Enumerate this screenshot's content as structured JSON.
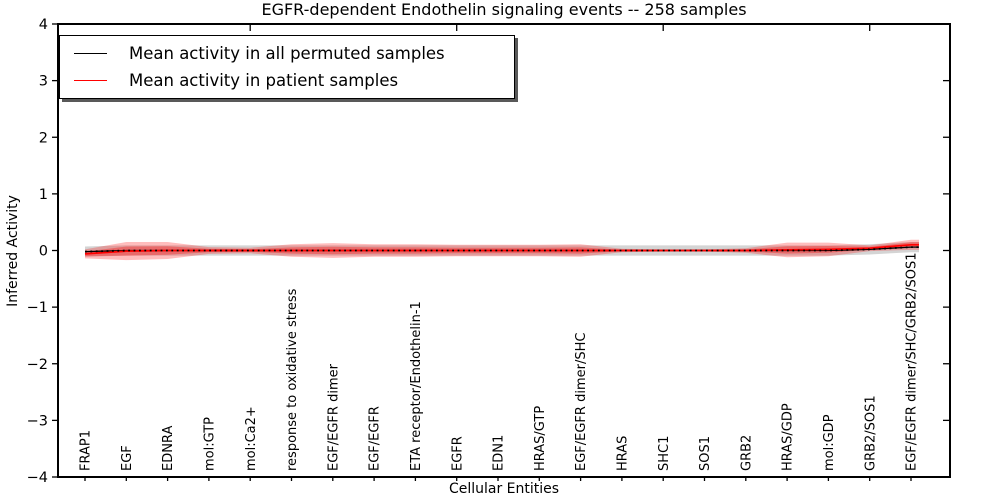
{
  "chart_data": {
    "type": "line",
    "title": "EGFR-dependent Endothelin signaling events -- 258 samples",
    "xlabel": "Cellular Entities",
    "ylabel": "Inferred Activity",
    "ylim": [
      -4,
      4
    ],
    "yticks": [
      4,
      3,
      2,
      1,
      0,
      -1,
      -2,
      -3,
      -4
    ],
    "top_tick_indices": [
      4,
      9,
      14,
      19
    ],
    "grid": false,
    "legend_position": "upper left",
    "categories": [
      "FRAP1",
      "EGF",
      "EDNRA",
      "mol:GTP",
      "mol:Ca2+",
      "response to oxidative stress",
      "EGF/EGFR dimer",
      "EGF/EGFR",
      "ETA receptor/Endothelin-1",
      "EGFR",
      "EDN1",
      "HRAS/GTP",
      "EGF/EGFR dimer/SHC",
      "HRAS",
      "SHC1",
      "SOS1",
      "GRB2",
      "HRAS/GDP",
      "mol:GDP",
      "GRB2/SOS1",
      "EGF/EGFR dimer/SHC/GRB2/SOS1"
    ],
    "series": [
      {
        "name": "Mean activity in all permuted samples",
        "color": "#000000",
        "values": [
          -0.02,
          0,
          0,
          0,
          0,
          0,
          0,
          0,
          0,
          0,
          0,
          0,
          0,
          0,
          0,
          0,
          0,
          0,
          0,
          0.02,
          0.06
        ]
      },
      {
        "name": "Mean activity in patient samples",
        "color": "#ff0000",
        "values": [
          -0.06,
          -0.01,
          0,
          0,
          0,
          0,
          0,
          0,
          0,
          0,
          0,
          0,
          0,
          0,
          0,
          0,
          0,
          0.01,
          0.02,
          0.04,
          0.1
        ]
      }
    ],
    "bands": [
      {
        "name": "permuted-std-band",
        "series": 0,
        "color": "#999999",
        "opacity": 0.42,
        "halfwidths": [
          0.09,
          0.09,
          0.09,
          0.09,
          0.09,
          0.09,
          0.09,
          0.09,
          0.09,
          0.09,
          0.09,
          0.09,
          0.09,
          0.09,
          0.09,
          0.09,
          0.09,
          0.09,
          0.09,
          0.09,
          0.09
        ]
      },
      {
        "name": "patient-std-band",
        "series": 1,
        "color": "#ff0000",
        "opacity": 0.26,
        "halfwidths": [
          0.08,
          0.16,
          0.15,
          0.06,
          0.05,
          0.11,
          0.13,
          0.11,
          0.11,
          0.1,
          0.1,
          0.1,
          0.11,
          0.03,
          0.02,
          0.02,
          0.04,
          0.13,
          0.12,
          0.05,
          0.09
        ]
      },
      {
        "name": "patient-inner-band",
        "series": 1,
        "color": "#ff0000",
        "opacity": 0.32,
        "scale": 0.5,
        "halfwidths": [
          0.08,
          0.16,
          0.15,
          0.06,
          0.05,
          0.11,
          0.13,
          0.11,
          0.11,
          0.1,
          0.1,
          0.1,
          0.11,
          0.03,
          0.02,
          0.02,
          0.04,
          0.13,
          0.12,
          0.05,
          0.09
        ]
      }
    ],
    "zero_line": {
      "style": "dotted",
      "color": "#000000"
    },
    "legend": [
      {
        "label": "Mean activity in all permuted samples",
        "color": "#000000"
      },
      {
        "label": "Mean activity in patient samples",
        "color": "#ff0000"
      }
    ]
  }
}
